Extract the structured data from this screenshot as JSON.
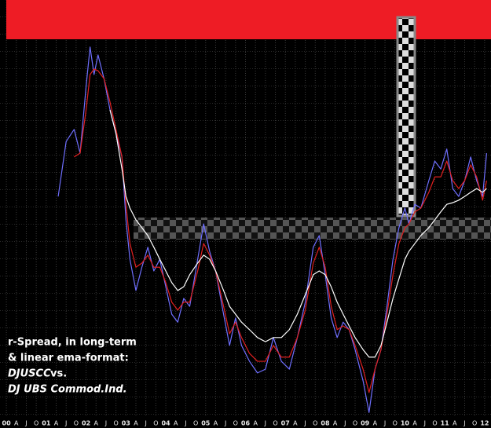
{
  "chart_data": {
    "type": "line",
    "annotations": [
      "r-Spread, in long-term",
      "& linear ema-format:",
      "DJUSCC",
      "vs.",
      "DJ UBS Commod.Ind."
    ],
    "x": [
      2001.3,
      2001.5,
      2001.7,
      2001.85,
      2002.0,
      2002.1,
      2002.2,
      2002.3,
      2002.45,
      2002.6,
      2002.75,
      2002.9,
      2003.0,
      2003.1,
      2003.25,
      2003.4,
      2003.55,
      2003.7,
      2003.85,
      2004.0,
      2004.15,
      2004.3,
      2004.45,
      2004.6,
      2004.8,
      2004.95,
      2005.1,
      2005.25,
      2005.45,
      2005.6,
      2005.75,
      2005.9,
      2006.1,
      2006.3,
      2006.5,
      2006.7,
      2006.9,
      2007.1,
      2007.3,
      2007.5,
      2007.7,
      2007.85,
      2008.0,
      2008.15,
      2008.3,
      2008.45,
      2008.6,
      2008.75,
      2008.95,
      2009.1,
      2009.25,
      2009.4,
      2009.55,
      2009.7,
      2009.85,
      2010.0,
      2010.1,
      2010.25,
      2010.4,
      2010.6,
      2010.75,
      2010.9,
      2011.05,
      2011.2,
      2011.35,
      2011.5,
      2011.65,
      2011.8,
      2011.95,
      2012.05
    ],
    "series": [
      {
        "color": "#6f6fff",
        "values": [
          52.8,
          66.0,
          68.9,
          63.2,
          79.2,
          88.7,
          82.1,
          86.8,
          81.1,
          73.6,
          67.9,
          62.3,
          47.2,
          37.7,
          30.2,
          35.8,
          40.6,
          34.9,
          37.7,
          31.1,
          24.5,
          22.6,
          28.3,
          26.4,
          37.7,
          46.2,
          39.6,
          34.9,
          24.5,
          17.0,
          23.6,
          17.0,
          13.2,
          10.4,
          11.3,
          18.9,
          13.2,
          11.3,
          18.9,
          27.4,
          40.6,
          43.4,
          34.0,
          23.6,
          18.9,
          22.6,
          20.8,
          16.0,
          8.5,
          0.9,
          11.3,
          16.0,
          26.4,
          37.7,
          45.3,
          50.0,
          46.2,
          50.9,
          50.0,
          56.6,
          61.3,
          59.4,
          64.2,
          54.7,
          52.8,
          56.6,
          62.3,
          56.6,
          52.8,
          63.2
        ]
      },
      {
        "color": "#e02020",
        "values": [
          null,
          null,
          62.3,
          63.2,
          73.6,
          82.1,
          83.4,
          83.0,
          81.1,
          75.5,
          68.9,
          62.3,
          50.9,
          41.5,
          35.8,
          36.8,
          38.7,
          35.8,
          35.8,
          32.1,
          27.4,
          25.5,
          27.4,
          27.4,
          34.9,
          41.5,
          38.7,
          34.9,
          26.4,
          19.8,
          22.6,
          18.9,
          15.1,
          13.2,
          13.2,
          17.0,
          14.2,
          14.2,
          18.9,
          25.5,
          36.8,
          40.6,
          35.8,
          26.4,
          20.8,
          21.7,
          20.8,
          17.0,
          11.3,
          5.7,
          11.3,
          16.0,
          24.5,
          34.0,
          41.5,
          45.3,
          46.2,
          49.1,
          50.0,
          53.8,
          57.5,
          57.5,
          61.3,
          56.6,
          54.7,
          56.6,
          60.4,
          57.5,
          51.9,
          56.6
        ]
      },
      {
        "color": "#ffffff",
        "values": [
          null,
          null,
          null,
          null,
          null,
          null,
          null,
          null,
          null,
          73.6,
          67.9,
          59.4,
          52.8,
          50.0,
          47.2,
          45.3,
          43.4,
          40.6,
          37.7,
          34.9,
          32.1,
          30.2,
          31.1,
          34.0,
          36.8,
          38.7,
          37.7,
          34.9,
          30.2,
          26.4,
          24.5,
          22.6,
          20.8,
          18.9,
          17.9,
          18.9,
          18.9,
          20.8,
          24.5,
          29.2,
          34.0,
          34.9,
          34.0,
          31.1,
          27.4,
          24.5,
          21.7,
          18.9,
          16.0,
          14.2,
          14.2,
          17.0,
          22.6,
          28.3,
          33.0,
          37.7,
          39.6,
          41.5,
          43.4,
          45.3,
          47.2,
          49.1,
          50.9,
          51.3,
          51.9,
          52.8,
          53.8,
          54.7,
          53.8,
          54.7
        ]
      }
    ],
    "xlim": [
      1999.84,
      2012.16
    ],
    "ylim": [
      0,
      100
    ],
    "xticks": [
      {
        "value": 2000,
        "label": "00"
      },
      {
        "value": 2000.25,
        "label": "A"
      },
      {
        "value": 2000.5,
        "label": "J"
      },
      {
        "value": 2000.75,
        "label": "O"
      },
      {
        "value": 2001,
        "label": "01"
      },
      {
        "value": 2001.25,
        "label": "A"
      },
      {
        "value": 2001.5,
        "label": "J"
      },
      {
        "value": 2001.75,
        "label": "O"
      },
      {
        "value": 2002,
        "label": "02"
      },
      {
        "value": 2002.25,
        "label": "A"
      },
      {
        "value": 2002.5,
        "label": "J"
      },
      {
        "value": 2002.75,
        "label": "O"
      },
      {
        "value": 2003,
        "label": "03"
      },
      {
        "value": 2003.25,
        "label": "A"
      },
      {
        "value": 2003.5,
        "label": "J"
      },
      {
        "value": 2003.75,
        "label": "O"
      },
      {
        "value": 2004,
        "label": "04"
      },
      {
        "value": 2004.25,
        "label": "A"
      },
      {
        "value": 2004.5,
        "label": "J"
      },
      {
        "value": 2004.75,
        "label": "O"
      },
      {
        "value": 2005,
        "label": "05"
      },
      {
        "value": 2005.25,
        "label": "A"
      },
      {
        "value": 2005.5,
        "label": "J"
      },
      {
        "value": 2005.75,
        "label": "O"
      },
      {
        "value": 2006,
        "label": "06"
      },
      {
        "value": 2006.25,
        "label": "A"
      },
      {
        "value": 2006.5,
        "label": "J"
      },
      {
        "value": 2006.75,
        "label": "O"
      },
      {
        "value": 2007,
        "label": "07"
      },
      {
        "value": 2007.25,
        "label": "A"
      },
      {
        "value": 2007.5,
        "label": "J"
      },
      {
        "value": 2007.75,
        "label": "O"
      },
      {
        "value": 2008,
        "label": "08"
      },
      {
        "value": 2008.25,
        "label": "A"
      },
      {
        "value": 2008.5,
        "label": "J"
      },
      {
        "value": 2008.75,
        "label": "O"
      },
      {
        "value": 2009,
        "label": "09"
      },
      {
        "value": 2009.25,
        "label": "A"
      },
      {
        "value": 2009.5,
        "label": "J"
      },
      {
        "value": 2009.75,
        "label": "O"
      },
      {
        "value": 2010,
        "label": "10"
      },
      {
        "value": 2010.25,
        "label": "A"
      },
      {
        "value": 2010.5,
        "label": "J"
      },
      {
        "value": 2010.75,
        "label": "O"
      },
      {
        "value": 2011,
        "label": "11"
      },
      {
        "value": 2011.25,
        "label": "A"
      },
      {
        "value": 2011.5,
        "label": "J"
      },
      {
        "value": 2011.75,
        "label": "O"
      },
      {
        "value": 2012,
        "label": "12"
      }
    ],
    "grid": true
  }
}
